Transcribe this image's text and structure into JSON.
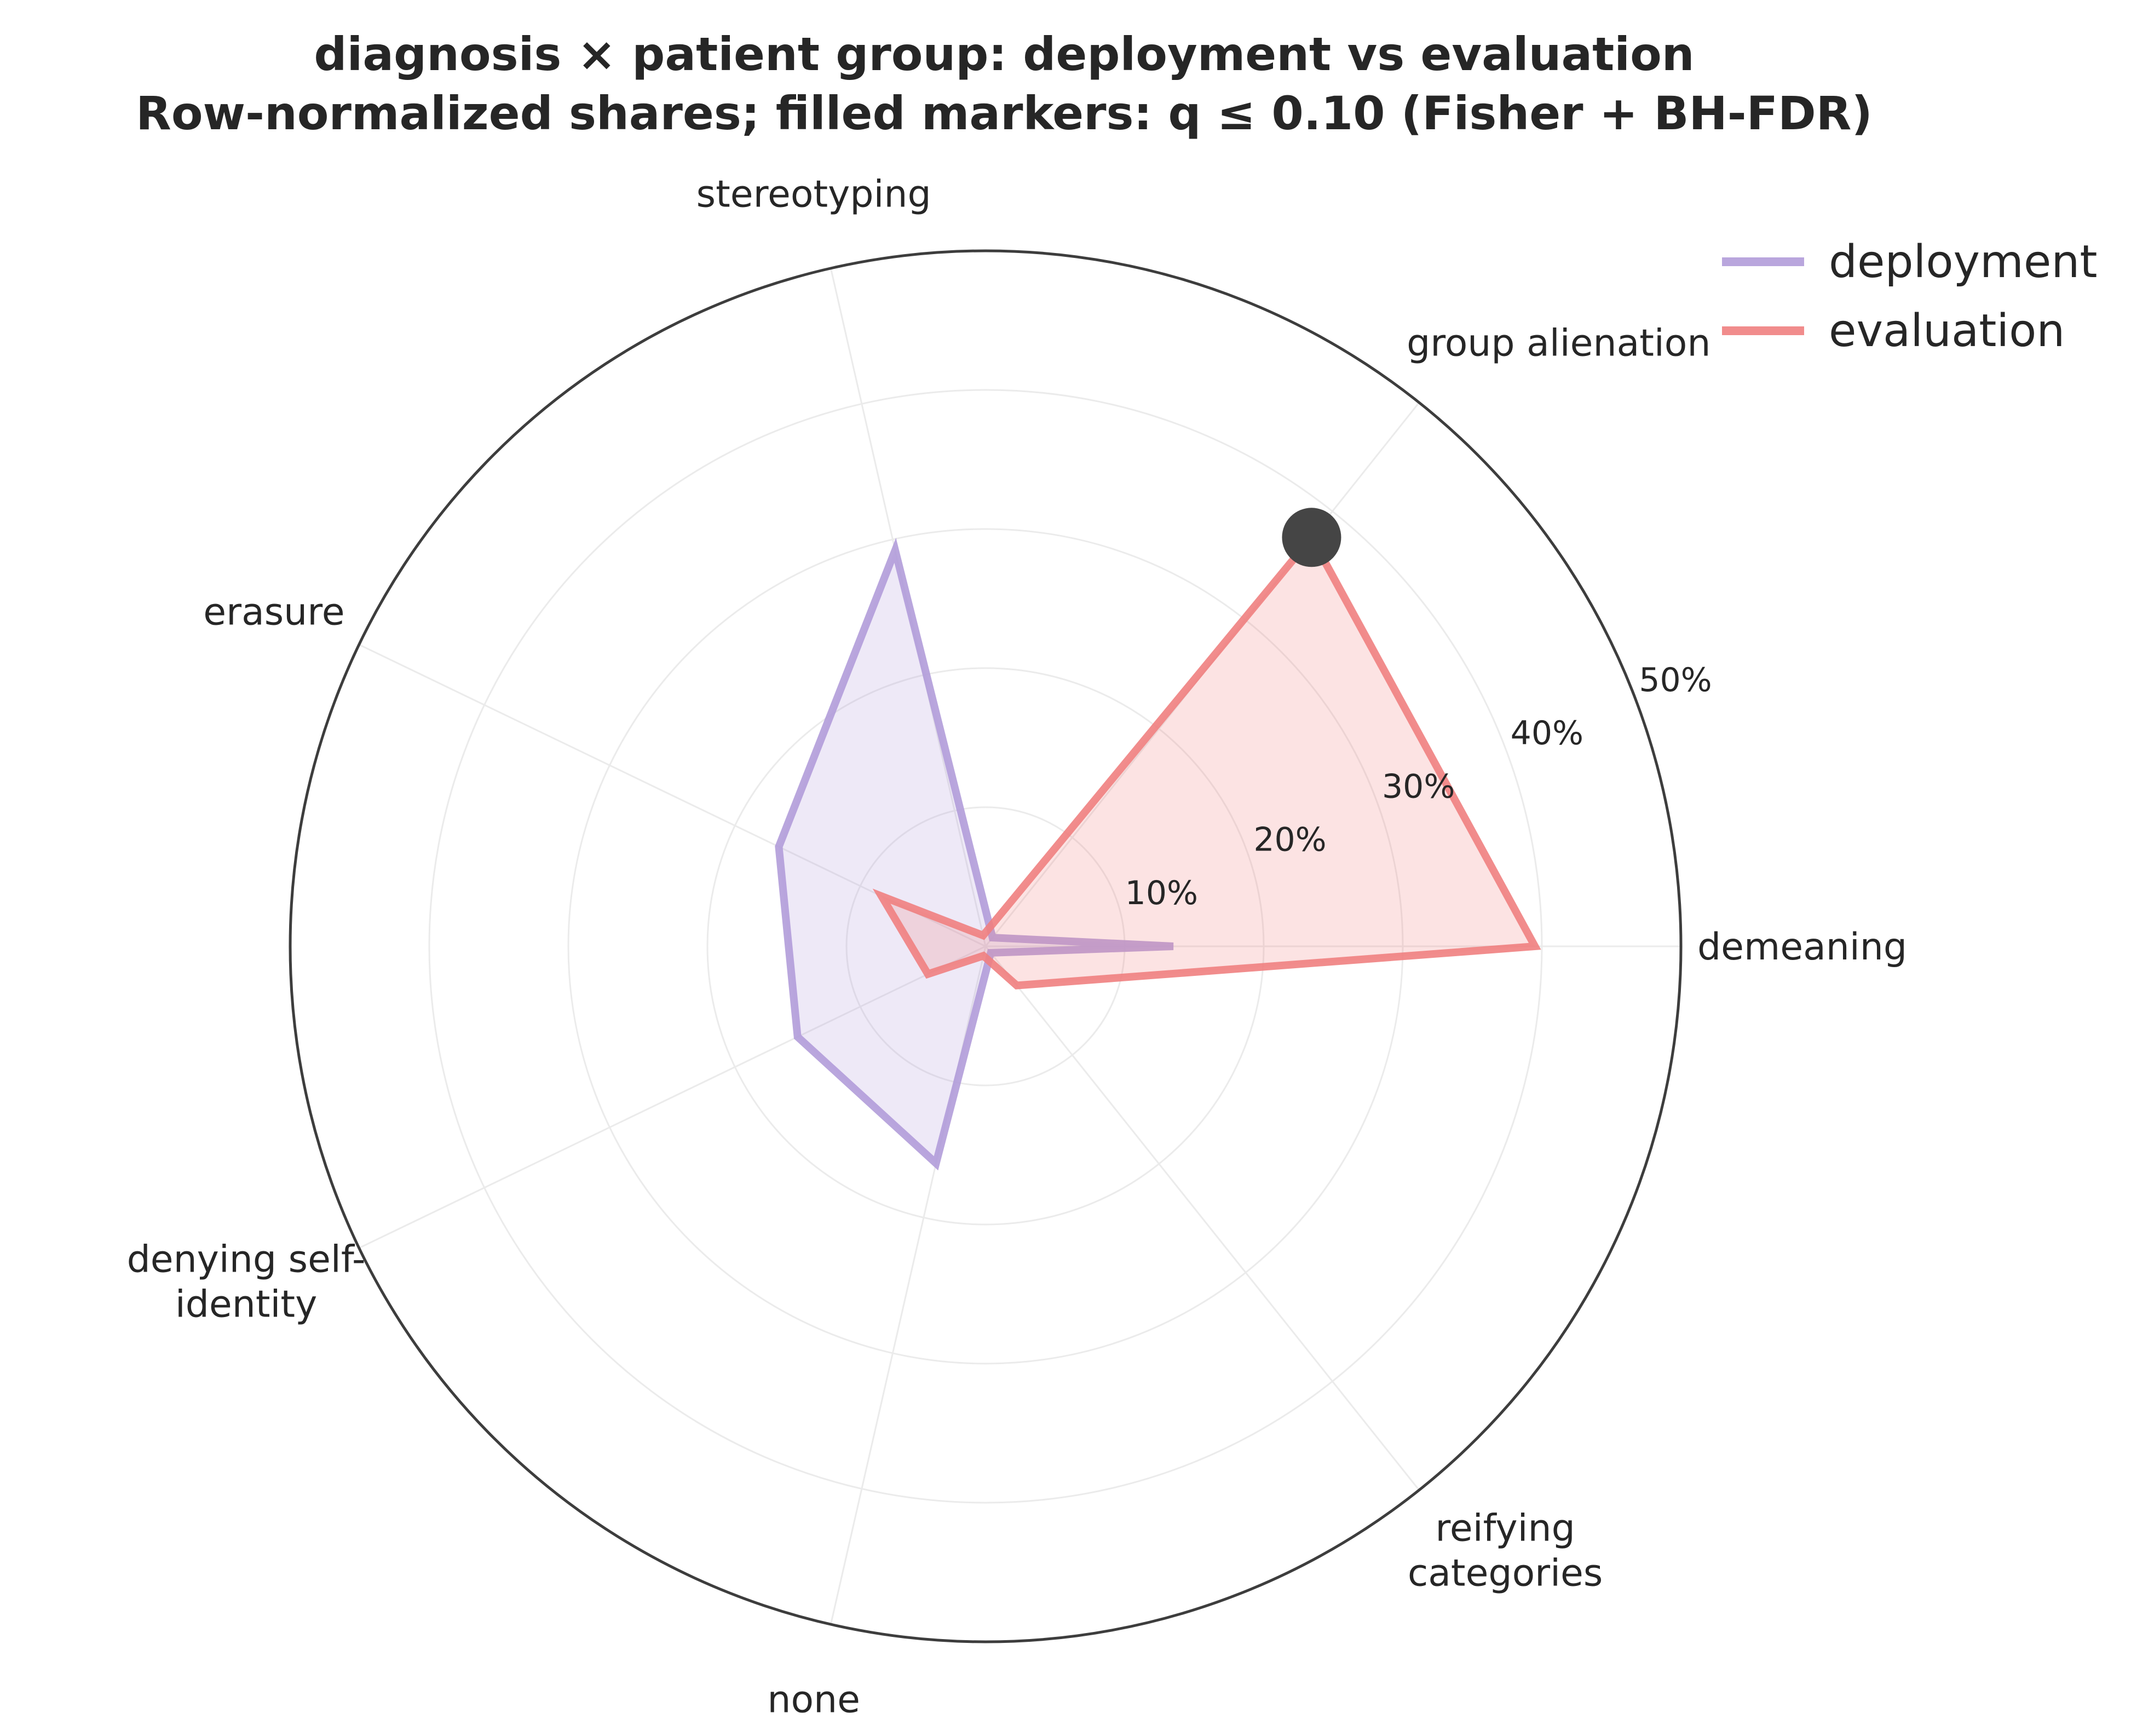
{
  "chart_data": {
    "type": "radar",
    "title": "diagnosis × patient group: deployment vs evaluation",
    "subtitle": "Row-normalized shares; filled markers: q ≤ 0.10 (Fisher + BH-FDR)",
    "categories": [
      "demeaning",
      "group alienation",
      "stereotyping",
      "erasure",
      "denying self-\nidentity",
      "none",
      "reifying\ncategories"
    ],
    "angles_deg": [
      0,
      51.43,
      102.86,
      154.29,
      205.71,
      257.14,
      308.57
    ],
    "r_ticks": [
      10,
      20,
      30,
      40,
      50
    ],
    "r_tick_labels": [
      "10%",
      "20%",
      "30%",
      "40%",
      "50%"
    ],
    "rlim": [
      0,
      50
    ],
    "series": [
      {
        "name": "deployment",
        "color": "#b19cd9",
        "values": [
          13.5,
          0.8,
          29.2,
          16.5,
          15.0,
          16.0,
          0.6
        ],
        "significant": [
          false,
          false,
          false,
          false,
          false,
          false,
          false
        ]
      },
      {
        "name": "evaluation",
        "color": "#f08080",
        "values": [
          39.5,
          37.6,
          0.8,
          8.3,
          4.6,
          0.7,
          3.6
        ],
        "significant": [
          false,
          true,
          false,
          false,
          false,
          false,
          false
        ]
      }
    ],
    "marker_color": "#454545",
    "legend_position": "top-right",
    "grid": true
  }
}
